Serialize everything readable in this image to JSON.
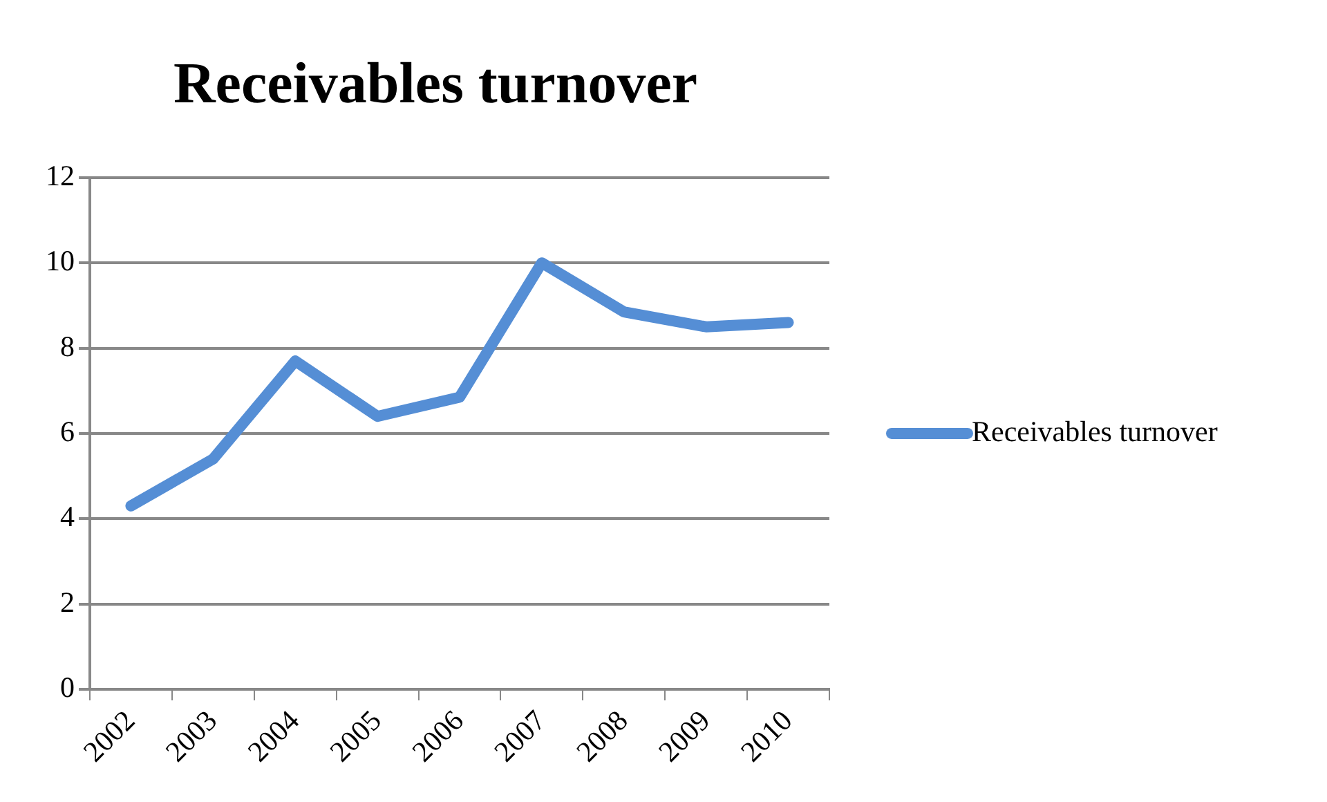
{
  "chart_data": {
    "type": "line",
    "title": "Receivables turnover",
    "categories": [
      "2002",
      "2003",
      "2004",
      "2005",
      "2006",
      "2007",
      "2008",
      "2009",
      "2010"
    ],
    "series": [
      {
        "name": "Receivables turnover",
        "color": "#558ed5",
        "values": [
          4.3,
          5.4,
          7.7,
          6.4,
          6.85,
          10.0,
          8.85,
          8.5,
          8.6
        ]
      }
    ],
    "ylim": [
      0,
      12
    ],
    "yticks": [
      0,
      2,
      4,
      6,
      8,
      10,
      12
    ],
    "grid": "y",
    "legend": "right",
    "marker": "none",
    "line_style": "solid"
  }
}
